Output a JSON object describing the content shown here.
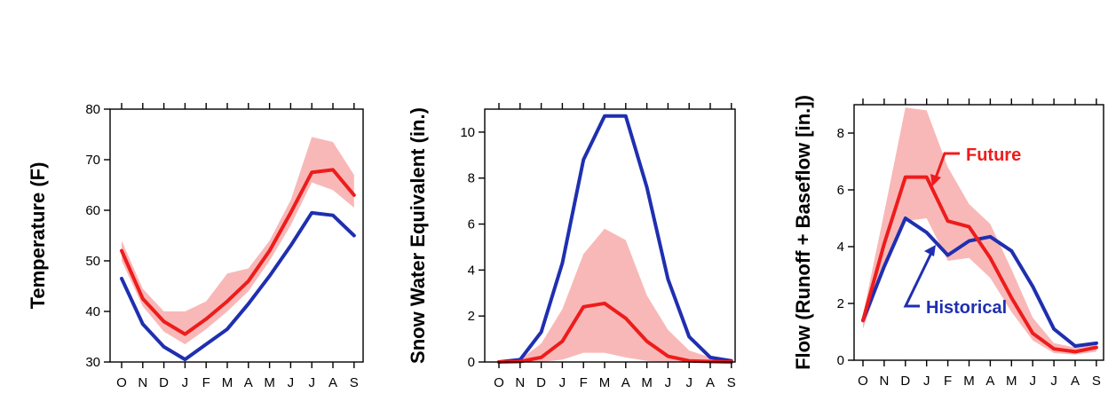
{
  "colors": {
    "future": "#ee1c1c",
    "historical": "#1f2fb0",
    "band": "#f9b8b8",
    "axis": "#000000"
  },
  "chart_data": [
    {
      "type": "line",
      "title": "",
      "xlabel": "",
      "ylabel": "Temperature (F)",
      "categories": [
        "O",
        "N",
        "D",
        "J",
        "F",
        "M",
        "A",
        "M",
        "J",
        "J",
        "A",
        "S"
      ],
      "ylim": [
        30,
        80
      ],
      "yticks": [
        30,
        40,
        50,
        60,
        70,
        80
      ],
      "grid": false,
      "series": [
        {
          "color_key": "historical",
          "values": [
            46.5,
            37.5,
            33,
            30.5,
            33.5,
            36.5,
            41.5,
            47,
            53,
            59.5,
            59,
            55
          ]
        },
        {
          "color_key": "future",
          "values": [
            52,
            42.5,
            38,
            35.5,
            38.5,
            42,
            46,
            52,
            59.5,
            67.5,
            68,
            63
          ]
        }
      ],
      "band": {
        "upper": [
          54,
          44.5,
          40,
          40,
          42,
          47.5,
          48.5,
          54,
          62,
          74.5,
          73.5,
          67
        ],
        "lower": [
          50,
          41,
          36,
          33.5,
          36.5,
          40,
          44,
          50,
          57,
          65.5,
          64,
          60.5
        ]
      }
    },
    {
      "type": "line",
      "title": "",
      "xlabel": "",
      "ylabel": "Snow Water Equivalent (in.)",
      "categories": [
        "O",
        "N",
        "D",
        "J",
        "F",
        "M",
        "A",
        "M",
        "J",
        "J",
        "A",
        "S"
      ],
      "ylim": [
        0,
        11
      ],
      "yticks": [
        0,
        2,
        4,
        6,
        8,
        10
      ],
      "grid": false,
      "series": [
        {
          "color_key": "historical",
          "values": [
            0,
            0.1,
            1.3,
            4.3,
            8.8,
            10.7,
            10.7,
            7.6,
            3.6,
            1.1,
            0.2,
            0.05
          ]
        },
        {
          "color_key": "future",
          "values": [
            0,
            0.02,
            0.2,
            0.9,
            2.4,
            2.55,
            1.9,
            0.9,
            0.25,
            0.05,
            0.02,
            0
          ]
        }
      ],
      "band": {
        "upper": [
          0.05,
          0.1,
          0.8,
          2.3,
          4.7,
          5.8,
          5.3,
          2.9,
          1.4,
          0.5,
          0.2,
          0.05
        ],
        "lower": [
          0,
          0,
          0,
          0.1,
          0.4,
          0.4,
          0.2,
          0.05,
          0,
          0,
          0,
          0
        ]
      }
    },
    {
      "type": "line",
      "title": "",
      "xlabel": "",
      "ylabel": "Flow (Runoff + Baseflow [in.])",
      "categories": [
        "O",
        "N",
        "D",
        "J",
        "F",
        "M",
        "A",
        "M",
        "J",
        "J",
        "A",
        "S"
      ],
      "ylim": [
        0,
        9
      ],
      "yticks": [
        0,
        2,
        4,
        6,
        8
      ],
      "grid": false,
      "series": [
        {
          "name": "Historical",
          "color_key": "historical",
          "values": [
            1.4,
            3.3,
            5.0,
            4.5,
            3.7,
            4.2,
            4.35,
            3.85,
            2.6,
            1.1,
            0.5,
            0.6
          ]
        },
        {
          "name": "Future",
          "color_key": "future",
          "values": [
            1.4,
            4.1,
            6.45,
            6.45,
            4.9,
            4.7,
            3.6,
            2.2,
            0.95,
            0.4,
            0.3,
            0.45
          ]
        }
      ],
      "band": {
        "upper": [
          1.6,
          5.2,
          8.9,
          8.8,
          6.8,
          5.5,
          4.8,
          3.2,
          1.5,
          0.6,
          0.45,
          0.65
        ],
        "lower": [
          1.1,
          3.2,
          4.9,
          5.0,
          3.5,
          3.6,
          2.9,
          1.7,
          0.7,
          0.25,
          0.2,
          0.3
        ]
      },
      "annotations": {
        "future_label": "Future",
        "historical_label": "Historical"
      }
    }
  ]
}
